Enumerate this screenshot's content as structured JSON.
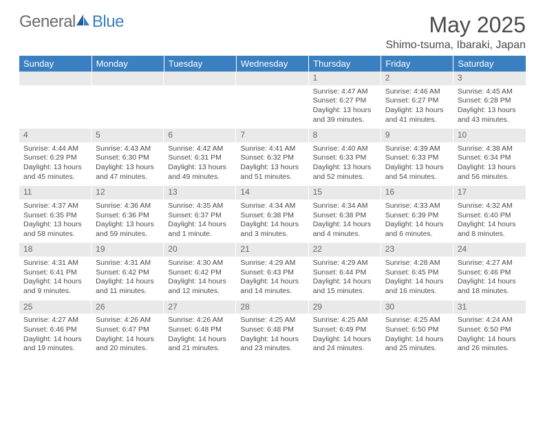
{
  "brand": {
    "word1": "General",
    "word2": "Blue"
  },
  "colors": {
    "header_bg": "#3a7fbf",
    "header_text": "#ffffff",
    "daynum_bg": "#e9e9e9",
    "daynum_text": "#666666",
    "body_text": "#4a4a4a",
    "logo_gray": "#6a6a6a",
    "logo_blue": "#3a7fbf",
    "page_bg": "#ffffff"
  },
  "typography": {
    "month_title_pt": 32,
    "location_pt": 16,
    "dayheader_pt": 13,
    "daynum_pt": 12,
    "cell_pt": 10.5
  },
  "title": "May 2025",
  "location": "Shimo-tsuma, Ibaraki, Japan",
  "day_headers": [
    "Sunday",
    "Monday",
    "Tuesday",
    "Wednesday",
    "Thursday",
    "Friday",
    "Saturday"
  ],
  "layout": {
    "columns": 7,
    "rows": 5,
    "first_weekday_index": 4
  },
  "weeks": [
    [
      null,
      null,
      null,
      null,
      {
        "n": "1",
        "sunrise": "Sunrise: 4:47 AM",
        "sunset": "Sunset: 6:27 PM",
        "daylight": "Daylight: 13 hours and 39 minutes."
      },
      {
        "n": "2",
        "sunrise": "Sunrise: 4:46 AM",
        "sunset": "Sunset: 6:27 PM",
        "daylight": "Daylight: 13 hours and 41 minutes."
      },
      {
        "n": "3",
        "sunrise": "Sunrise: 4:45 AM",
        "sunset": "Sunset: 6:28 PM",
        "daylight": "Daylight: 13 hours and 43 minutes."
      }
    ],
    [
      {
        "n": "4",
        "sunrise": "Sunrise: 4:44 AM",
        "sunset": "Sunset: 6:29 PM",
        "daylight": "Daylight: 13 hours and 45 minutes."
      },
      {
        "n": "5",
        "sunrise": "Sunrise: 4:43 AM",
        "sunset": "Sunset: 6:30 PM",
        "daylight": "Daylight: 13 hours and 47 minutes."
      },
      {
        "n": "6",
        "sunrise": "Sunrise: 4:42 AM",
        "sunset": "Sunset: 6:31 PM",
        "daylight": "Daylight: 13 hours and 49 minutes."
      },
      {
        "n": "7",
        "sunrise": "Sunrise: 4:41 AM",
        "sunset": "Sunset: 6:32 PM",
        "daylight": "Daylight: 13 hours and 51 minutes."
      },
      {
        "n": "8",
        "sunrise": "Sunrise: 4:40 AM",
        "sunset": "Sunset: 6:33 PM",
        "daylight": "Daylight: 13 hours and 52 minutes."
      },
      {
        "n": "9",
        "sunrise": "Sunrise: 4:39 AM",
        "sunset": "Sunset: 6:33 PM",
        "daylight": "Daylight: 13 hours and 54 minutes."
      },
      {
        "n": "10",
        "sunrise": "Sunrise: 4:38 AM",
        "sunset": "Sunset: 6:34 PM",
        "daylight": "Daylight: 13 hours and 56 minutes."
      }
    ],
    [
      {
        "n": "11",
        "sunrise": "Sunrise: 4:37 AM",
        "sunset": "Sunset: 6:35 PM",
        "daylight": "Daylight: 13 hours and 58 minutes."
      },
      {
        "n": "12",
        "sunrise": "Sunrise: 4:36 AM",
        "sunset": "Sunset: 6:36 PM",
        "daylight": "Daylight: 13 hours and 59 minutes."
      },
      {
        "n": "13",
        "sunrise": "Sunrise: 4:35 AM",
        "sunset": "Sunset: 6:37 PM",
        "daylight": "Daylight: 14 hours and 1 minute."
      },
      {
        "n": "14",
        "sunrise": "Sunrise: 4:34 AM",
        "sunset": "Sunset: 6:38 PM",
        "daylight": "Daylight: 14 hours and 3 minutes."
      },
      {
        "n": "15",
        "sunrise": "Sunrise: 4:34 AM",
        "sunset": "Sunset: 6:38 PM",
        "daylight": "Daylight: 14 hours and 4 minutes."
      },
      {
        "n": "16",
        "sunrise": "Sunrise: 4:33 AM",
        "sunset": "Sunset: 6:39 PM",
        "daylight": "Daylight: 14 hours and 6 minutes."
      },
      {
        "n": "17",
        "sunrise": "Sunrise: 4:32 AM",
        "sunset": "Sunset: 6:40 PM",
        "daylight": "Daylight: 14 hours and 8 minutes."
      }
    ],
    [
      {
        "n": "18",
        "sunrise": "Sunrise: 4:31 AM",
        "sunset": "Sunset: 6:41 PM",
        "daylight": "Daylight: 14 hours and 9 minutes."
      },
      {
        "n": "19",
        "sunrise": "Sunrise: 4:31 AM",
        "sunset": "Sunset: 6:42 PM",
        "daylight": "Daylight: 14 hours and 11 minutes."
      },
      {
        "n": "20",
        "sunrise": "Sunrise: 4:30 AM",
        "sunset": "Sunset: 6:42 PM",
        "daylight": "Daylight: 14 hours and 12 minutes."
      },
      {
        "n": "21",
        "sunrise": "Sunrise: 4:29 AM",
        "sunset": "Sunset: 6:43 PM",
        "daylight": "Daylight: 14 hours and 14 minutes."
      },
      {
        "n": "22",
        "sunrise": "Sunrise: 4:29 AM",
        "sunset": "Sunset: 6:44 PM",
        "daylight": "Daylight: 14 hours and 15 minutes."
      },
      {
        "n": "23",
        "sunrise": "Sunrise: 4:28 AM",
        "sunset": "Sunset: 6:45 PM",
        "daylight": "Daylight: 14 hours and 16 minutes."
      },
      {
        "n": "24",
        "sunrise": "Sunrise: 4:27 AM",
        "sunset": "Sunset: 6:46 PM",
        "daylight": "Daylight: 14 hours and 18 minutes."
      }
    ],
    [
      {
        "n": "25",
        "sunrise": "Sunrise: 4:27 AM",
        "sunset": "Sunset: 6:46 PM",
        "daylight": "Daylight: 14 hours and 19 minutes."
      },
      {
        "n": "26",
        "sunrise": "Sunrise: 4:26 AM",
        "sunset": "Sunset: 6:47 PM",
        "daylight": "Daylight: 14 hours and 20 minutes."
      },
      {
        "n": "27",
        "sunrise": "Sunrise: 4:26 AM",
        "sunset": "Sunset: 6:48 PM",
        "daylight": "Daylight: 14 hours and 21 minutes."
      },
      {
        "n": "28",
        "sunrise": "Sunrise: 4:25 AM",
        "sunset": "Sunset: 6:48 PM",
        "daylight": "Daylight: 14 hours and 23 minutes."
      },
      {
        "n": "29",
        "sunrise": "Sunrise: 4:25 AM",
        "sunset": "Sunset: 6:49 PM",
        "daylight": "Daylight: 14 hours and 24 minutes."
      },
      {
        "n": "30",
        "sunrise": "Sunrise: 4:25 AM",
        "sunset": "Sunset: 6:50 PM",
        "daylight": "Daylight: 14 hours and 25 minutes."
      },
      {
        "n": "31",
        "sunrise": "Sunrise: 4:24 AM",
        "sunset": "Sunset: 6:50 PM",
        "daylight": "Daylight: 14 hours and 26 minutes."
      }
    ]
  ]
}
